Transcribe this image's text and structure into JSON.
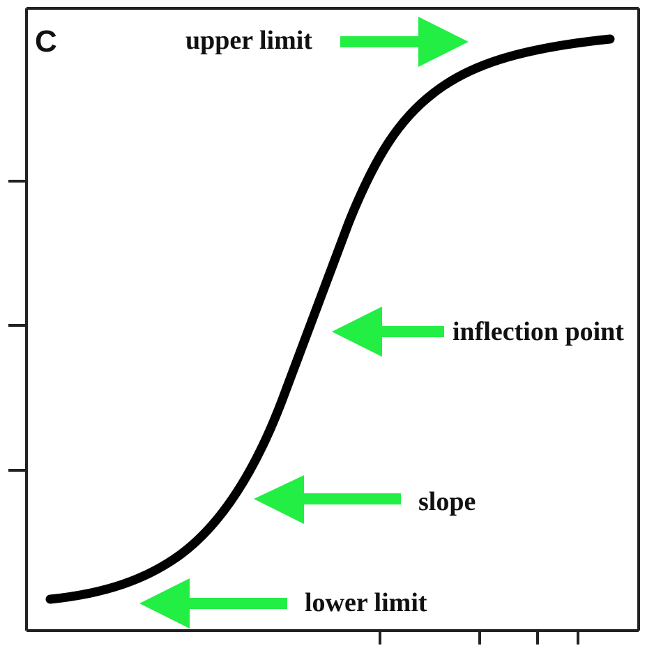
{
  "panel_label": "C",
  "annotations": {
    "upper_limit": "upper limit",
    "inflection_point": "inflection point",
    "slope": "slope",
    "lower_limit": "lower limit"
  },
  "colors": {
    "curve": "#000000",
    "frame": "#222222",
    "arrow": "#22ee44",
    "text": "#111111"
  },
  "icons": {
    "upper_limit": "arrow-right-icon",
    "inflection_point": "arrow-left-icon",
    "slope": "arrow-left-icon",
    "lower_limit": "arrow-left-icon"
  }
}
